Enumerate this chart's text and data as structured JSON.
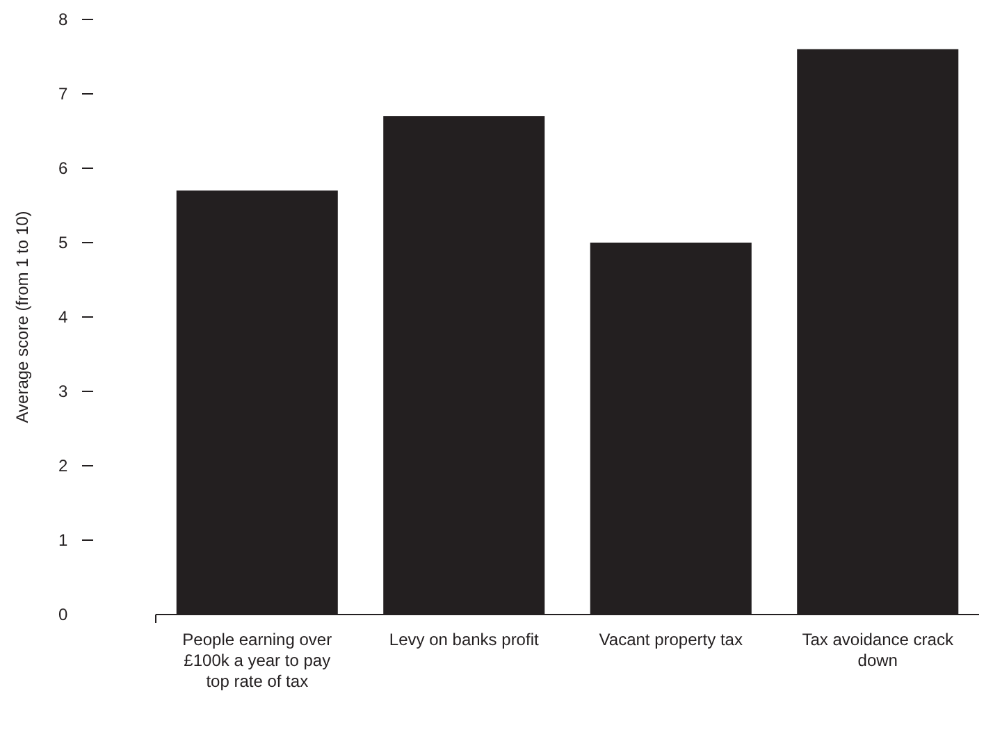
{
  "chart_data": {
    "type": "bar",
    "ylabel": "Average score (from 1 to 10)",
    "categories": [
      "People earning over £100k a year to pay top rate of tax",
      "Levy on banks profit",
      "Vacant property tax",
      "Tax avoidance crack down"
    ],
    "values": [
      5.7,
      6.7,
      5.0,
      7.6
    ],
    "color": "#231f20",
    "ylim": [
      0,
      8
    ],
    "yticks": [
      0,
      1,
      2,
      3,
      4,
      5,
      6,
      7,
      8
    ],
    "grid": false
  }
}
